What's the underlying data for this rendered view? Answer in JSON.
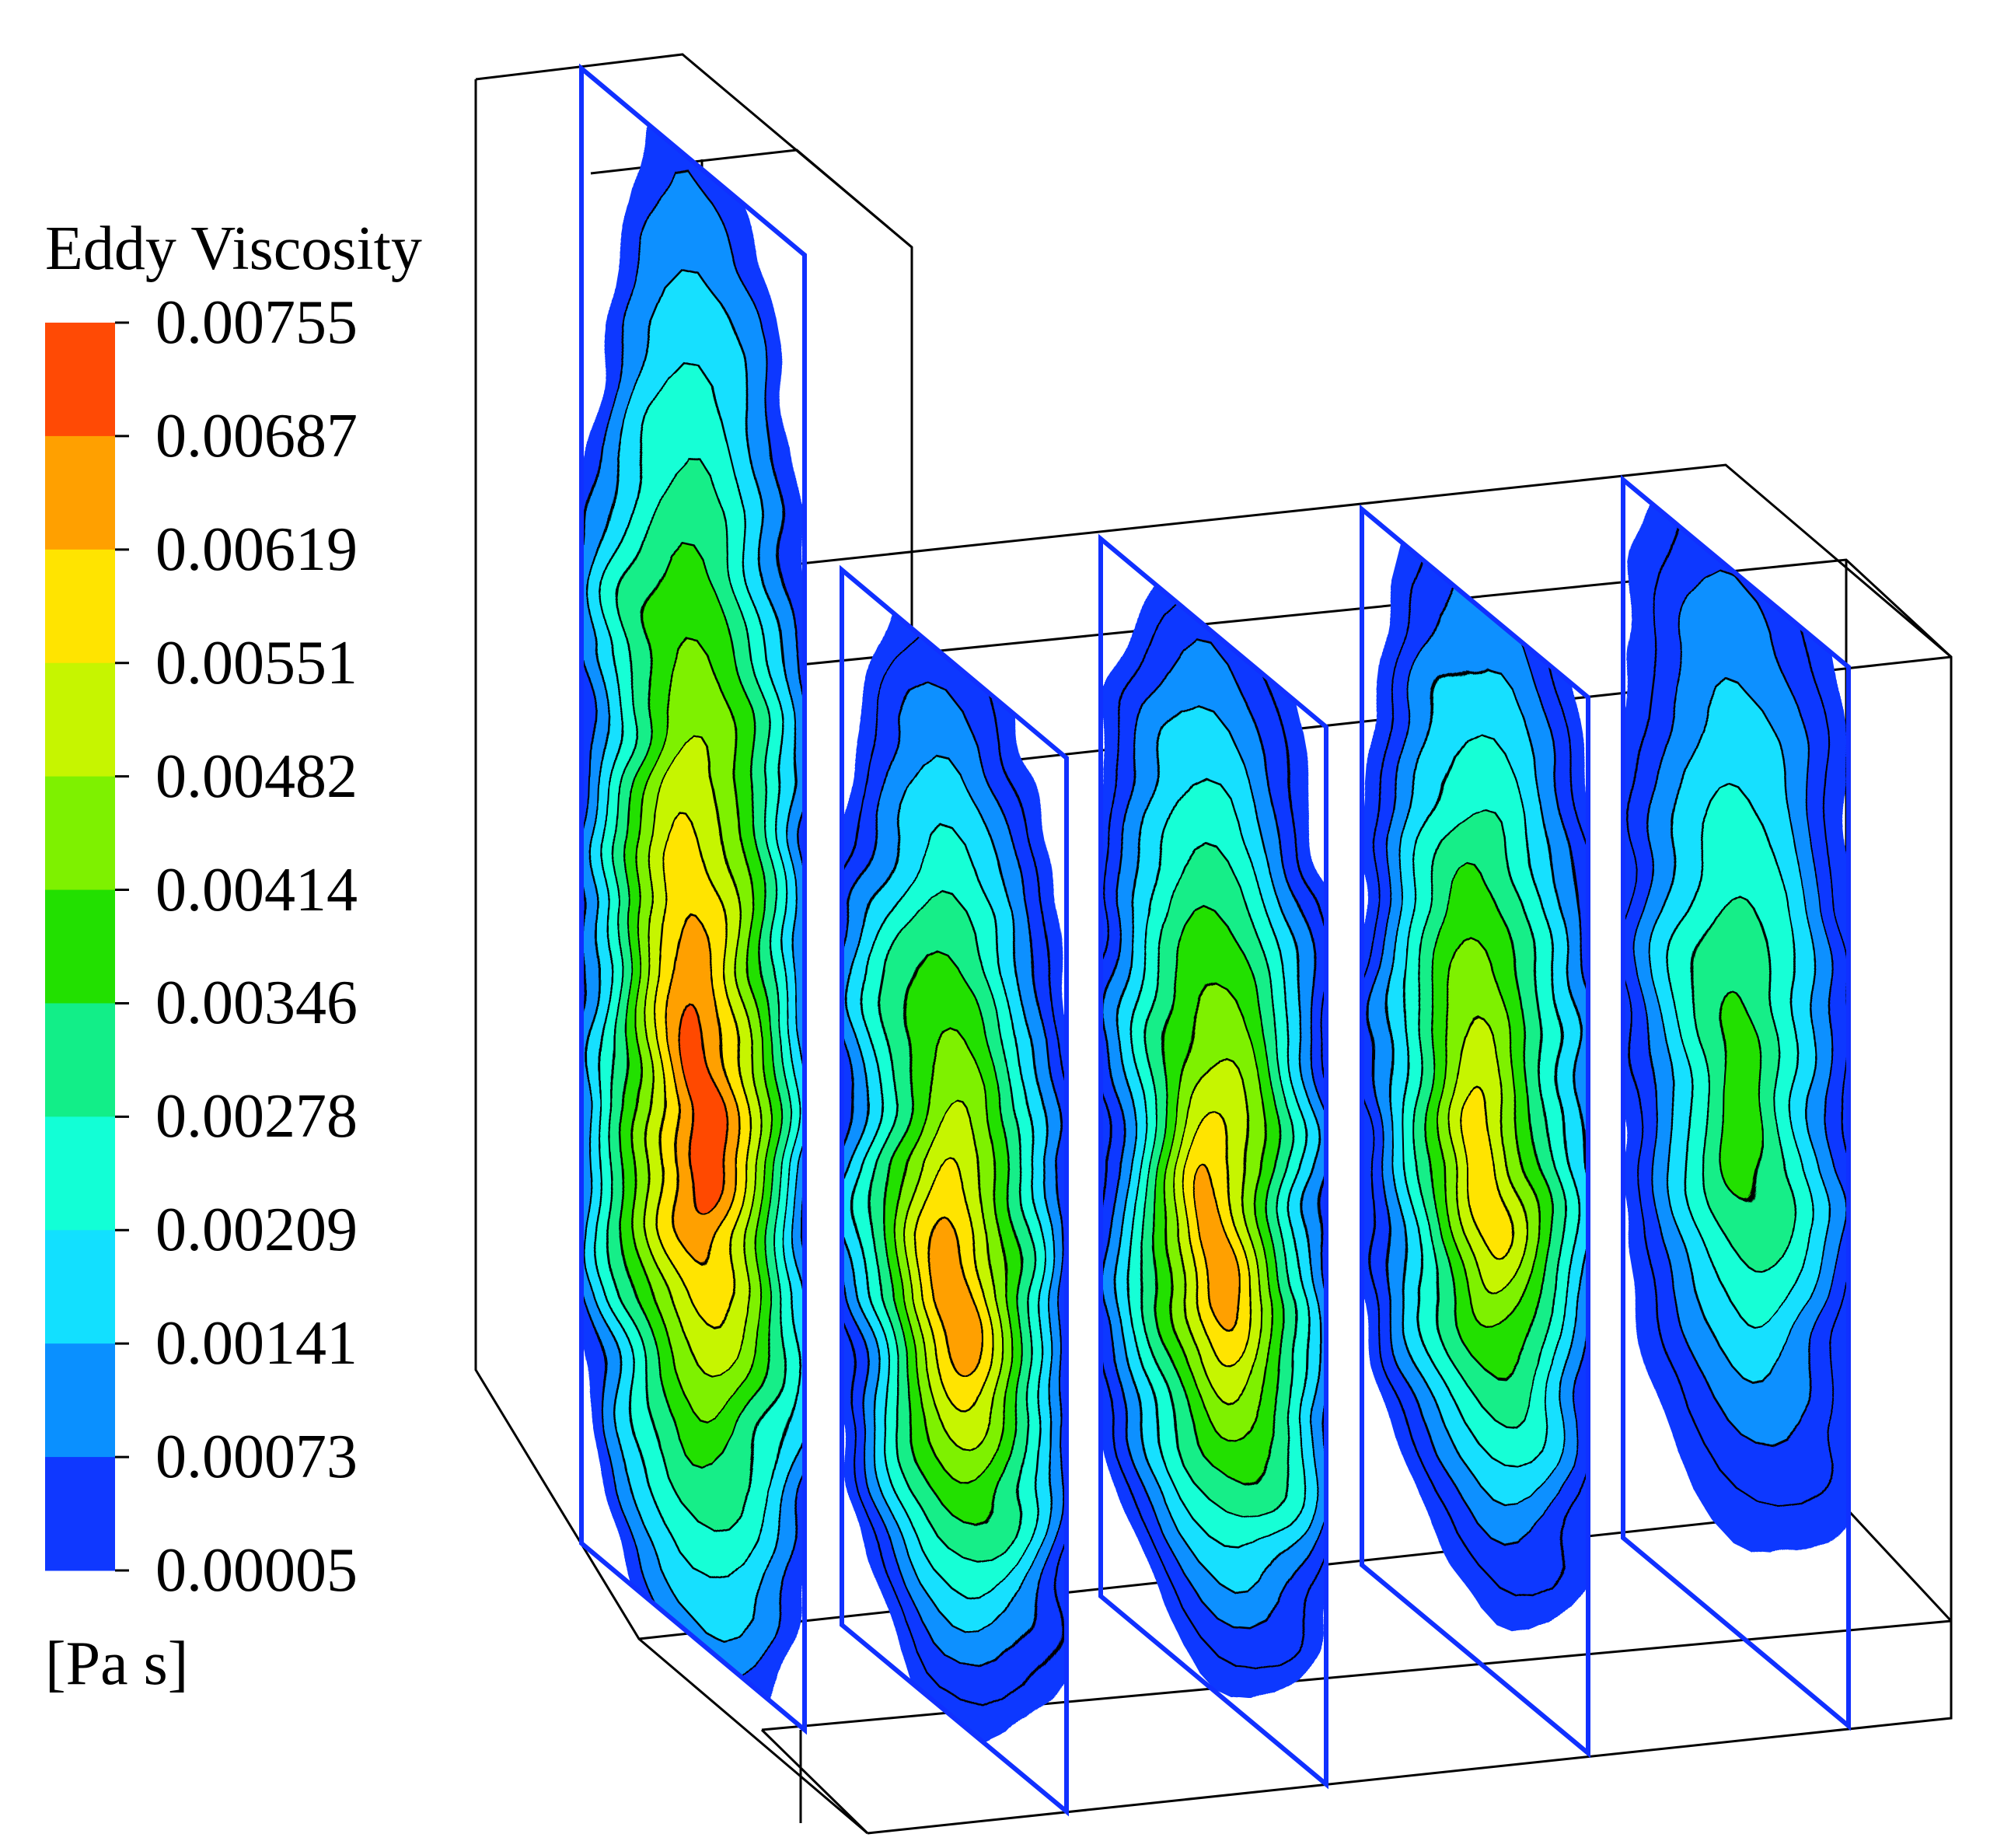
{
  "legend": {
    "title": "Eddy Viscosity",
    "unit": "[Pa s]",
    "ticks": [
      "0.00755",
      "0.00687",
      "0.00619",
      "0.00551",
      "0.00482",
      "0.00414",
      "0.00346",
      "0.00278",
      "0.00209",
      "0.00141",
      "0.00073",
      "0.00005"
    ],
    "bands": [
      "#ff4a05",
      "#ffa000",
      "#ffe400",
      "#c6f500",
      "#7ef100",
      "#22e000",
      "#12ee88",
      "#12ffd6",
      "#12e0ff",
      "#0a90ff",
      "#0f38ff"
    ]
  },
  "slices": [
    {
      "bands": [
        10,
        9,
        8,
        7,
        6,
        5,
        4,
        3,
        2,
        1,
        0
      ]
    },
    {
      "bands": [
        11,
        10,
        9,
        8,
        7,
        6,
        5,
        4,
        3,
        2,
        1
      ]
    },
    {
      "bands": [
        11,
        10,
        9,
        8,
        7,
        6,
        5,
        4,
        3,
        2,
        1
      ]
    },
    {
      "bands": [
        11,
        10,
        9,
        8,
        7,
        6,
        5,
        4,
        3,
        2
      ]
    },
    {
      "bands": [
        11,
        10,
        9,
        8,
        7,
        6,
        5
      ]
    }
  ]
}
